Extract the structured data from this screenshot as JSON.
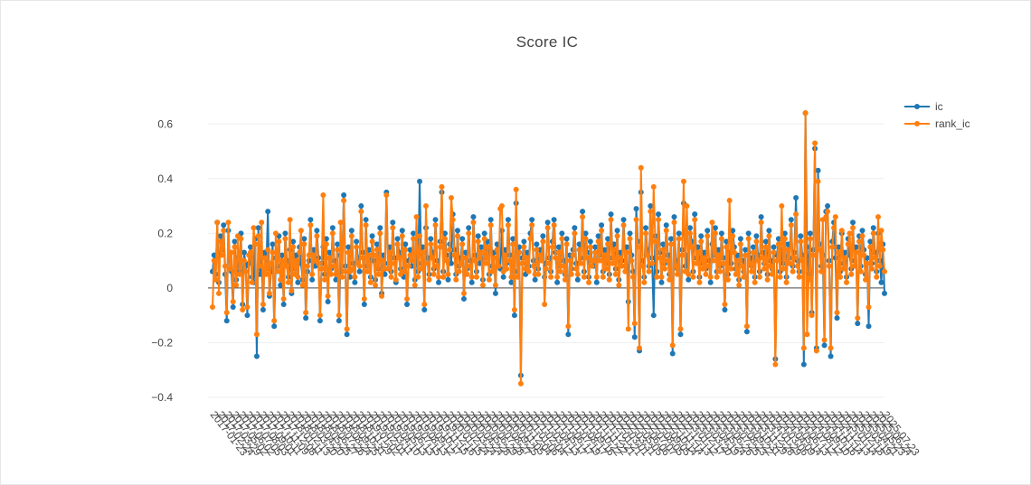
{
  "chart_data": {
    "type": "line",
    "title": "Score IC",
    "xlabel": "",
    "ylabel": "",
    "ylim": [
      -0.45,
      0.71
    ],
    "yticks": [
      -0.4,
      -0.2,
      0,
      0.2,
      0.4,
      0.6
    ],
    "ytick_labels": [
      "−0.4",
      "−0.2",
      "0",
      "0.2",
      "0.4",
      "0.6"
    ],
    "grid": true,
    "legend_position": "top-right",
    "x_tick_labels": [
      "2017-01-23",
      "2017-02-24",
      "2017-03-29",
      "2017-05-02",
      "2017-06-02",
      "2017-07-05",
      "2017-08-03",
      "2017-09-01",
      "2017-10-11",
      "2017-11-09",
      "2017-12-08",
      "2018-01-11",
      "2018-02-13",
      "2018-03-20",
      "2018-04-20",
      "2018-05-25",
      "2018-06-27",
      "2018-07-26",
      "2018-08-24",
      "2018-09-25",
      "2018-10-31",
      "2018-11-29",
      "2019-01-02",
      "2019-02-01",
      "2019-03-11",
      "2019-04-10",
      "2019-05-13",
      "2019-06-13",
      "2019-07-15",
      "2019-08-13",
      "2019-09-12",
      "2019-10-17",
      "2019-11-15",
      "2019-12-16",
      "2020-01-15",
      "2020-02-24",
      "2020-03-24",
      "2020-04-24",
      "2020-05-28",
      "2020-06-29",
      "2020-07-28",
      "2020-08-27",
      "2020-09-25",
      "2020-11-05",
      "2020-12-04",
      "2021-01-06",
      "2021-02-04",
      "2021-03-12",
      "2021-04-13",
      "2021-05-17",
      "2021-06-17",
      "2021-07-19",
      "2021-08-17",
      "2021-09-16",
      "2021-10-22",
      "2021-11-22",
      "2021-12-21",
      "2022-01-21",
      "2022-03-01",
      "2022-03-31",
      "2022-05-05",
      "2022-06-06",
      "2022-07-07",
      "2022-08-05",
      "2022-09-05",
      "2022-10-14",
      "2022-11-14",
      "2022-12-13",
      "2023-01-12",
      "2023-02-17",
      "2023-03-20",
      "2023-04-19",
      "2023-05-24",
      "2023-06-26",
      "2023-07-25",
      "2023-08-23",
      "2023-09-22",
      "2023-10-31",
      "2023-11-29",
      "2023-12-28",
      "2024-01-29",
      "2024-03-06",
      "2024-04-09",
      "2024-05-14",
      "2024-06-13",
      "2024-07-12",
      "2024-08-12",
      "2024-09-10",
      "2024-10-16",
      "2024-11-14",
      "2024-12-13",
      "2025-01-14",
      "2025-02-18",
      "2025-03-19",
      "2025-04-21",
      "2025-05-23",
      "2025-06-24",
      "2025-07-23"
    ],
    "series": [
      {
        "name": "ic",
        "color": "#1f77b4",
        "values": [
          0.06,
          0.12,
          0.05,
          0.24,
          0.02,
          0.19,
          0.14,
          0.23,
          0.05,
          -0.12,
          0.21,
          0.1,
          0.06,
          -0.07,
          0.17,
          0.03,
          0.11,
          0.06,
          0.2,
          -0.06,
          0.13,
          0.08,
          -0.1,
          0.09,
          0.15,
          0.04,
          0.02,
          0.18,
          -0.25,
          0.22,
          0.05,
          0.12,
          -0.08,
          0.13,
          0.07,
          0.28,
          -0.03,
          0.06,
          0.16,
          -0.14,
          0.11,
          0.08,
          0.19,
          0.01,
          0.12,
          -0.06,
          0.2,
          0.1,
          0.04,
          0.14,
          -0.02,
          0.17,
          0.07,
          0.12,
          0.02,
          0.15,
          0.09,
          0.03,
          0.18,
          -0.11,
          0.06,
          0.1,
          0.25,
          0.03,
          0.14,
          0.08,
          0.21,
          0.11,
          -0.12,
          0.09,
          0.15,
          0.05,
          0.18,
          -0.05,
          0.13,
          0.07,
          0.22,
          0.1,
          0.03,
          0.16,
          -0.12,
          0.12,
          0.06,
          0.34,
          0.08,
          -0.17,
          0.15,
          0.04,
          0.21,
          0.09,
          0.02,
          0.17,
          0.11,
          0.06,
          0.3,
          0.13,
          -0.06,
          0.25,
          0.08,
          0.14,
          0.04,
          0.19,
          0.1,
          0.03,
          0.16,
          0.07,
          0.22,
          -0.02,
          0.12,
          0.05,
          0.35,
          0.09,
          0.15,
          0.06,
          0.24,
          0.11,
          0.02,
          0.18,
          0.13,
          0.07,
          0.21,
          0.04,
          0.16,
          -0.06,
          0.1,
          0.14,
          0.08,
          0.2,
          0.03,
          0.12,
          0.06,
          0.39,
          0.09,
          0.15,
          -0.08,
          0.22,
          0.11,
          0.05,
          0.18,
          0.13,
          0.07,
          0.25,
          0.1,
          0.02,
          0.17,
          0.35,
          0.06,
          0.2,
          0.12,
          0.03,
          0.16,
          0.09,
          0.27,
          0.14,
          0.05,
          0.21,
          0.08,
          0.11,
          0.18,
          -0.04,
          0.13,
          0.07,
          0.22,
          0.1,
          0.02,
          0.26,
          0.12,
          0.06,
          0.19,
          0.09,
          0.15,
          0.03,
          0.2,
          0.11,
          0.17,
          0.05,
          0.25,
          0.08,
          0.13,
          -0.02,
          0.16,
          0.1,
          0.07,
          0.21,
          0.04,
          0.14,
          0.09,
          0.25,
          0.12,
          0.02,
          0.18,
          -0.1,
          0.31,
          0.06,
          0.15,
          -0.32,
          0.11,
          0.17,
          0.05,
          0.13,
          0.08,
          0.2,
          0.25,
          0.1,
          0.03,
          0.16,
          0.07,
          0.14,
          0.12,
          0.19,
          0.04,
          0.09,
          0.24,
          0.11,
          0.06,
          0.17,
          0.25,
          0.13,
          0.02,
          0.15,
          0.08,
          0.2,
          0.1,
          0.05,
          0.18,
          -0.17,
          0.12,
          0.07,
          0.14,
          0.22,
          0.09,
          0.03,
          0.16,
          0.11,
          0.28,
          0.06,
          0.2,
          0.13,
          0.04,
          0.17,
          0.1,
          0.08,
          0.15,
          0.02,
          0.19,
          0.12,
          0.23,
          0.06,
          0.14,
          0.09,
          0.18,
          0.05,
          0.27,
          0.11,
          0.16,
          0.07,
          0.21,
          0.03,
          0.13,
          0.1,
          0.25,
          0.08,
          0.15,
          -0.05,
          0.2,
          0.12,
          0.06,
          -0.18,
          0.29,
          0.17,
          -0.23,
          0.35,
          0.1,
          0.04,
          0.22,
          0.14,
          0.08,
          0.3,
          0.11,
          -0.1,
          0.19,
          0.06,
          0.27,
          0.13,
          0.02,
          0.16,
          0.09,
          0.23,
          0.12,
          0.05,
          0.18,
          -0.24,
          0.26,
          0.1,
          0.07,
          0.2,
          -0.17,
          0.14,
          0.31,
          0.08,
          0.12,
          0.03,
          0.22,
          0.17,
          0.06,
          0.27,
          0.11,
          0.15,
          0.04,
          0.19,
          0.09,
          0.13,
          0.07,
          0.21,
          0.1,
          0.02,
          0.16,
          0.12,
          0.22,
          0.06,
          0.14,
          0.08,
          0.2,
          0.11,
          -0.08,
          0.17,
          0.05,
          0.13,
          0.09,
          0.21,
          0.15,
          0.07,
          0.12,
          0.03,
          0.18,
          0.1,
          0.06,
          0.14,
          -0.16,
          0.2,
          0.11,
          0.08,
          0.15,
          0.04,
          0.19,
          0.12,
          0.06,
          0.26,
          0.13,
          0.09,
          0.17,
          0.05,
          0.21,
          0.1,
          0.07,
          0.15,
          -0.26,
          0.12,
          0.18,
          0.06,
          0.14,
          0.09,
          0.2,
          0.04,
          0.16,
          0.11,
          0.25,
          0.08,
          0.13,
          0.33,
          0.1,
          0.06,
          0.19,
          0.12,
          -0.28,
          0.64,
          0.15,
          0.05,
          0.2,
          -0.09,
          0.14,
          0.51,
          -0.22,
          0.43,
          0.16,
          0.08,
          0.12,
          -0.21,
          0.28,
          0.3,
          0.1,
          -0.25,
          0.17,
          0.24,
          0.11,
          -0.11,
          0.15,
          0.06,
          0.2,
          0.09,
          0.13,
          0.04,
          0.18,
          0.12,
          0.07,
          0.24,
          0.1,
          0.15,
          -0.13,
          0.19,
          0.08,
          0.21,
          0.14,
          0.05,
          0.11,
          -0.14,
          0.17,
          0.09,
          0.22,
          0.13,
          0.06,
          0.2,
          0.1,
          0.02,
          0.16,
          -0.02
        ]
      },
      {
        "name": "rank_ic",
        "color": "#ff7f0e",
        "values": [
          -0.07,
          0.1,
          0.03,
          0.24,
          -0.02,
          0.17,
          0.12,
          0.21,
          0.08,
          -0.09,
          0.24,
          0.07,
          0.13,
          -0.05,
          0.15,
          0.01,
          0.19,
          0.05,
          0.18,
          -0.08,
          0.1,
          0.06,
          -0.07,
          0.12,
          0.13,
          0.02,
          0.22,
          0.16,
          -0.17,
          0.19,
          0.08,
          0.24,
          -0.06,
          0.11,
          0.05,
          0.14,
          -0.02,
          0.09,
          0.13,
          -0.12,
          0.2,
          0.06,
          0.17,
          0.03,
          0.1,
          -0.04,
          0.18,
          0.08,
          0.02,
          0.25,
          -0.01,
          0.15,
          0.05,
          0.1,
          0.04,
          0.13,
          0.21,
          0.01,
          0.16,
          -0.09,
          0.08,
          0.12,
          0.23,
          0.05,
          0.12,
          0.1,
          0.19,
          0.09,
          -0.1,
          0.07,
          0.34,
          0.03,
          0.16,
          -0.03,
          0.11,
          0.05,
          0.2,
          0.08,
          0.05,
          0.14,
          -0.1,
          0.24,
          0.04,
          0.32,
          0.06,
          -0.15,
          0.13,
          0.06,
          0.19,
          0.07,
          0.04,
          0.15,
          0.09,
          0.08,
          0.28,
          0.11,
          -0.04,
          0.23,
          0.06,
          0.12,
          0.02,
          0.17,
          0.12,
          0.01,
          0.14,
          0.05,
          0.2,
          -0.03,
          0.1,
          0.07,
          0.34,
          0.07,
          0.13,
          0.04,
          0.22,
          0.09,
          0.03,
          0.16,
          0.11,
          0.05,
          0.19,
          0.06,
          0.14,
          -0.04,
          0.08,
          0.12,
          0.1,
          0.18,
          0.01,
          0.26,
          0.04,
          0.19,
          0.07,
          0.13,
          -0.06,
          0.3,
          0.09,
          0.03,
          0.16,
          0.11,
          0.05,
          0.23,
          0.08,
          0.04,
          0.15,
          0.37,
          0.04,
          0.18,
          0.1,
          0.05,
          0.14,
          0.33,
          0.25,
          0.12,
          0.03,
          0.19,
          0.06,
          0.09,
          0.16,
          -0.02,
          0.11,
          0.05,
          0.2,
          0.08,
          0.04,
          0.24,
          0.1,
          0.04,
          0.17,
          0.11,
          0.13,
          0.01,
          0.18,
          0.09,
          0.15,
          0.03,
          0.23,
          0.06,
          0.11,
          0.01,
          0.14,
          0.08,
          0.29,
          0.3,
          0.06,
          0.12,
          0.07,
          0.23,
          0.1,
          0.04,
          0.16,
          -0.08,
          0.36,
          0.04,
          0.13,
          -0.35,
          0.09,
          0.15,
          0.07,
          0.11,
          0.06,
          0.18,
          0.23,
          0.08,
          0.05,
          0.14,
          0.05,
          0.12,
          0.1,
          0.17,
          -0.06,
          0.07,
          0.22,
          0.09,
          0.04,
          0.15,
          0.23,
          0.11,
          0.04,
          0.13,
          0.06,
          0.18,
          0.08,
          0.03,
          0.16,
          -0.14,
          0.1,
          0.05,
          0.12,
          0.2,
          0.07,
          0.05,
          0.14,
          0.09,
          0.26,
          0.04,
          0.18,
          0.11,
          0.02,
          0.15,
          0.08,
          0.1,
          0.13,
          0.04,
          0.17,
          0.1,
          0.21,
          0.04,
          0.12,
          0.07,
          0.16,
          0.03,
          0.25,
          0.09,
          0.14,
          0.05,
          0.19,
          0.01,
          0.11,
          0.08,
          0.23,
          0.06,
          0.13,
          -0.15,
          0.18,
          0.1,
          0.04,
          -0.13,
          0.25,
          0.15,
          -0.22,
          0.44,
          0.08,
          0.02,
          0.2,
          0.12,
          0.06,
          0.28,
          0.09,
          0.37,
          0.17,
          0.04,
          0.25,
          0.11,
          0.04,
          0.14,
          0.07,
          0.21,
          0.1,
          0.03,
          0.16,
          -0.21,
          0.24,
          0.08,
          0.05,
          0.18,
          -0.15,
          0.12,
          0.39,
          0.06,
          0.3,
          0.05,
          0.2,
          0.15,
          0.04,
          0.25,
          0.09,
          0.13,
          0.02,
          0.17,
          0.07,
          0.11,
          0.05,
          0.19,
          0.08,
          0.04,
          0.24,
          0.1,
          0.2,
          0.04,
          0.12,
          0.06,
          0.18,
          0.09,
          -0.06,
          0.15,
          0.03,
          0.32,
          0.07,
          0.19,
          0.13,
          0.05,
          0.1,
          0.01,
          0.16,
          0.08,
          0.04,
          0.12,
          -0.14,
          0.18,
          0.09,
          0.06,
          0.13,
          0.02,
          0.17,
          0.1,
          0.04,
          0.24,
          0.11,
          0.07,
          0.15,
          0.03,
          0.19,
          0.08,
          0.05,
          0.13,
          -0.28,
          0.1,
          0.16,
          0.04,
          0.3,
          0.07,
          0.18,
          0.02,
          0.14,
          0.09,
          0.23,
          0.06,
          0.11,
          0.27,
          0.08,
          0.04,
          0.17,
          0.1,
          -0.22,
          0.64,
          -0.17,
          0.03,
          0.18,
          -0.1,
          0.12,
          0.53,
          -0.23,
          0.39,
          0.14,
          0.06,
          0.25,
          -0.19,
          0.26,
          0.28,
          0.08,
          -0.22,
          0.15,
          0.22,
          0.26,
          -0.09,
          0.13,
          0.04,
          0.21,
          0.07,
          0.11,
          0.02,
          0.16,
          0.2,
          0.05,
          0.22,
          0.08,
          0.13,
          -0.11,
          0.17,
          0.06,
          0.19,
          0.12,
          0.03,
          0.09,
          -0.07,
          0.15,
          0.07,
          0.2,
          0.11,
          0.04,
          0.26,
          0.08,
          0.21,
          0.14,
          0.06
        ]
      }
    ]
  }
}
